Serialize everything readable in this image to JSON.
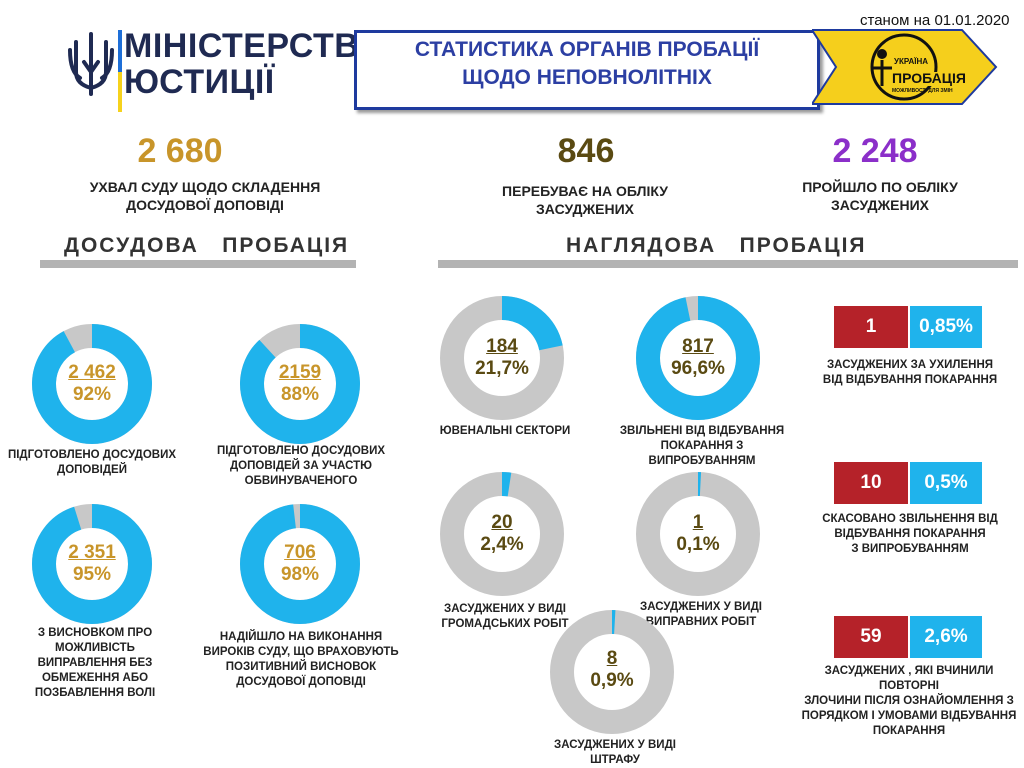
{
  "header": {
    "date": "станом на 01.01.2020",
    "ministry_line1": "МІНІСТЕРСТВО",
    "ministry_line2": "ЮСТИЦІЇ",
    "title_line1": "СТАТИСТИКА ОРГАНІВ ПРОБАЦІЇ",
    "title_line2": "ЩОДО НЕПОВНОЛІТНІХ",
    "badge_text1": "ПРОБАЦІЯ",
    "badge_text2": "УКРАЇНА",
    "badge_text3": "МОЖЛИВОСТІ ДЛЯ ЗМІН"
  },
  "colors": {
    "accent_blue": "#1fb3ec",
    "ring_gray": "#c8c8c8",
    "gold": "#c8952a",
    "olive": "#5a4a12",
    "purple": "#8b2fc9",
    "red": "#b52229",
    "navy": "#2c3fa3"
  },
  "totals": [
    {
      "value": "2 680",
      "label_line1": "УХВАЛ СУДУ ЩОДО СКЛАДЕННЯ",
      "label_line2": "ДОСУДОВОЇ ДОПОВІДІ"
    },
    {
      "value": "846",
      "label_line1": "ПЕРЕБУВАЄ НА ОБЛІКУ",
      "label_line2": "ЗАСУДЖЕНИХ"
    },
    {
      "value": "2 248",
      "label_line1": "ПРОЙШЛО ПО ОБЛІКУ",
      "label_line2": "ЗАСУДЖЕНИХ"
    }
  ],
  "sections": {
    "pretrial": "ДОСУДОВА   ПРОБАЦІЯ",
    "supervision": "НАГЛЯДОВА   ПРОБАЦІЯ"
  },
  "pretrial_rings": [
    {
      "num": "2 462",
      "pct": "92%",
      "fraction": 0.92,
      "cap1": "ПІДГОТОВЛЕНО  ДОСУДОВИХ",
      "cap2": "ДОПОВІДЕЙ",
      "cap3": "",
      "cap4": ""
    },
    {
      "num": "2159",
      "pct": "88%",
      "fraction": 0.88,
      "cap1": "ПІДГОТОВЛЕНО  ДОСУДОВИХ",
      "cap2": "ДОПОВІДЕЙ  ЗА  УЧАСТЮ",
      "cap3": "ОБВИНУВАЧЕНОГО",
      "cap4": ""
    },
    {
      "num": "2 351",
      "pct": "95%",
      "fraction": 0.95,
      "cap1": "З  ВИСНОВКОМ  ПРО",
      "cap2": "МОЖЛИВІСТЬ",
      "cap3": "ВИПРАВЛЕННЯ  БЕЗ",
      "cap4": "ОБМЕЖЕННЯ  АБО",
      "cap5": "ПОЗБАВЛЕННЯ  ВОЛІ"
    },
    {
      "num": "706",
      "pct": "98%",
      "fraction": 0.98,
      "cap1": "НАДІЙШЛО  НА  ВИКОНАННЯ",
      "cap2": "ВИРОКІВ  СУДУ,  ЩО  ВРАХОВУЮТЬ",
      "cap3": "ПОЗИТИВНИЙ  ВИСНОВОК",
      "cap4": "ДОСУДОВОЇ  ДОПОВІДІ"
    }
  ],
  "supervision_rings": [
    {
      "num": "184",
      "pct": "21,7%",
      "fraction": 0.217,
      "cap1": "ЮВЕНАЛЬНІ СЕКТОРИ",
      "cap2": "",
      "cap3": ""
    },
    {
      "num": "817",
      "pct": "96,6%",
      "fraction": 0.966,
      "cap1": "ЗВІЛЬНЕНІ   ВІД  ВІДБУВАННЯ",
      "cap2": "ПОКАРАННЯ  З",
      "cap3": "ВИПРОБУВАННЯМ"
    },
    {
      "num": "20",
      "pct": "2,4%",
      "fraction": 0.024,
      "cap1": "ЗАСУДЖЕНИХ  У ВИДІ",
      "cap2": "ГРОМАДСЬКИХ  РОБІТ",
      "cap3": ""
    },
    {
      "num": "1",
      "pct": "0,1%",
      "fraction": 0.001,
      "cap1": "ЗАСУДЖЕНИХ  У ВИДІ",
      "cap2": "ВИПРАВНИХ  РОБІТ",
      "cap3": ""
    },
    {
      "num": "8",
      "pct": "0,9%",
      "fraction": 0.009,
      "cap1": "ЗАСУДЖЕНИХ  У ВИДІ",
      "cap2": "ШТРАФУ",
      "cap3": ""
    }
  ],
  "right_stats": [
    {
      "count": "1",
      "pct": "0,85%",
      "cap1": "ЗАСУДЖЕНИХ  ЗА  УХИЛЕННЯ",
      "cap2": "ВІД  ВІДБУВАННЯ  ПОКАРАННЯ",
      "cap3": "",
      "cap4": ""
    },
    {
      "count": "10",
      "pct": "0,5%",
      "cap1": "СКАСОВАНО  ЗВІЛЬНЕННЯ   ВІД",
      "cap2": "ВІДБУВАННЯ  ПОКАРАННЯ",
      "cap3": "З  ВИПРОБУВАННЯМ",
      "cap4": ""
    },
    {
      "count": "59",
      "pct": "2,6%",
      "cap1": "ЗАСУДЖЕНИХ  , ЯКІ  ВЧИНИЛИ  ПОВТОРНІ",
      "cap2": "ЗЛОЧИНИ  ПІСЛЯ  ОЗНАЙОМЛЕННЯ  З",
      "cap3": "ПОРЯДКОМ  І  УМОВАМИ  ВІДБУВАННЯ",
      "cap4": "ПОКАРАННЯ"
    }
  ]
}
